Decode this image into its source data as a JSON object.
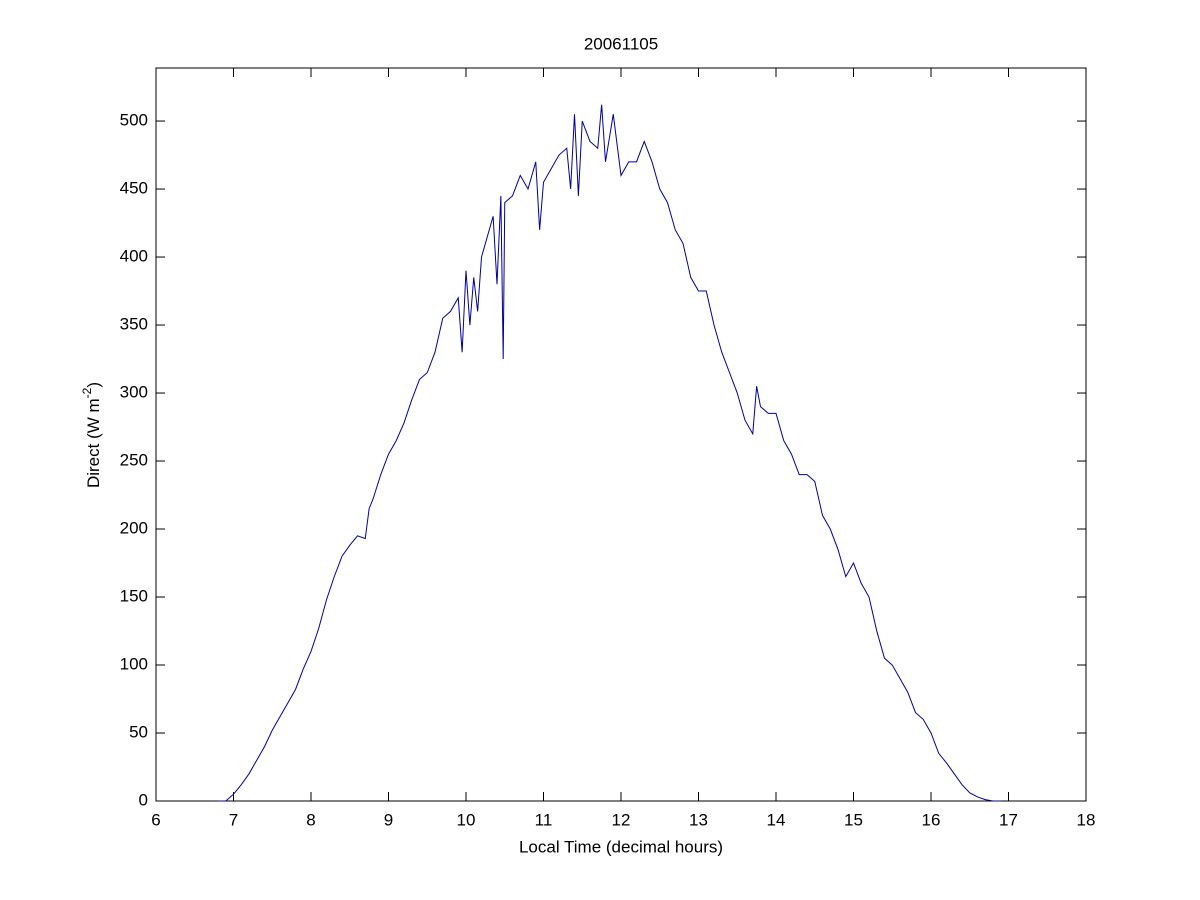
{
  "chart_data": {
    "type": "line",
    "title": "20061105",
    "xlabel": "Local Time (decimal hours)",
    "ylabel": [
      "Direct (W m",
      "-2",
      ")"
    ],
    "x": [
      6.8,
      6.9,
      7.0,
      7.1,
      7.2,
      7.3,
      7.4,
      7.5,
      7.6,
      7.7,
      7.8,
      7.9,
      8.0,
      8.1,
      8.2,
      8.3,
      8.4,
      8.5,
      8.6,
      8.7,
      8.75,
      8.8,
      8.9,
      9.0,
      9.1,
      9.2,
      9.3,
      9.4,
      9.5,
      9.6,
      9.7,
      9.8,
      9.9,
      9.95,
      10.0,
      10.05,
      10.1,
      10.15,
      10.2,
      10.3,
      10.35,
      10.4,
      10.45,
      10.48,
      10.5,
      10.6,
      10.7,
      10.8,
      10.9,
      10.95,
      11.0,
      11.1,
      11.2,
      11.3,
      11.35,
      11.4,
      11.45,
      11.5,
      11.6,
      11.7,
      11.75,
      11.8,
      11.9,
      12.0,
      12.1,
      12.2,
      12.3,
      12.4,
      12.5,
      12.6,
      12.7,
      12.8,
      12.9,
      13.0,
      13.1,
      13.2,
      13.3,
      13.4,
      13.5,
      13.6,
      13.7,
      13.75,
      13.8,
      13.9,
      14.0,
      14.1,
      14.2,
      14.3,
      14.4,
      14.5,
      14.6,
      14.7,
      14.8,
      14.9,
      15.0,
      15.1,
      15.2,
      15.3,
      15.4,
      15.5,
      15.6,
      15.7,
      15.8,
      15.9,
      16.0,
      16.1,
      16.2,
      16.3,
      16.4,
      16.5,
      16.6,
      16.7,
      16.8,
      16.9
    ],
    "series": [
      {
        "color": "#0000a0",
        "values": [
          0,
          0,
          5,
          12,
          20,
          30,
          40,
          52,
          62,
          72,
          82,
          97,
          110,
          127,
          148,
          165,
          180,
          188,
          195,
          193,
          215,
          222,
          240,
          255,
          265,
          278,
          295,
          310,
          315,
          330,
          355,
          360,
          370,
          330,
          390,
          350,
          385,
          360,
          400,
          420,
          430,
          380,
          445,
          325,
          440,
          445,
          460,
          450,
          470,
          420,
          455,
          465,
          475,
          480,
          450,
          505,
          445,
          500,
          485,
          480,
          512,
          470,
          505,
          460,
          470,
          470,
          485,
          470,
          450,
          440,
          420,
          410,
          385,
          375,
          375,
          350,
          330,
          315,
          300,
          280,
          270,
          305,
          290,
          285,
          285,
          265,
          255,
          240,
          240,
          235,
          210,
          200,
          185,
          165,
          175,
          160,
          150,
          125,
          105,
          100,
          90,
          80,
          65,
          60,
          50,
          35,
          28,
          20,
          12,
          6,
          3,
          1,
          0,
          0
        ]
      }
    ],
    "xlim": [
      6,
      18
    ],
    "xticks": [
      6,
      7,
      8,
      9,
      10,
      11,
      12,
      13,
      14,
      15,
      16,
      17,
      18
    ],
    "ylim": [
      0,
      539
    ],
    "yticks": [
      0,
      50,
      100,
      150,
      200,
      250,
      300,
      350,
      400,
      450,
      500
    ]
  }
}
